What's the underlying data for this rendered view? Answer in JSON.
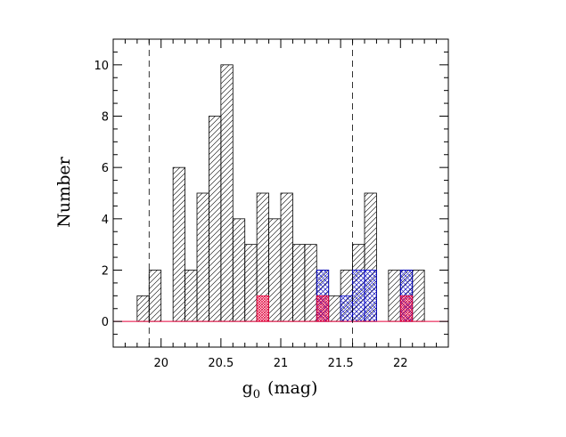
{
  "chart_data": {
    "type": "bar",
    "title": "",
    "xlabel_main": "g",
    "xlabel_sub": "0",
    "xlabel_unit": "(mag)",
    "ylabel": "Number",
    "xlim": [
      19.6,
      22.4
    ],
    "ylim": [
      -1,
      11
    ],
    "bin_width": 0.1,
    "x_ticks": [
      20,
      20.5,
      21,
      21.5,
      22
    ],
    "x_tick_labels": [
      "20",
      "20.5",
      "21",
      "21.5",
      "22"
    ],
    "y_ticks": [
      0,
      2,
      4,
      6,
      8,
      10
    ],
    "y_tick_labels": [
      "0",
      "2",
      "4",
      "6",
      "8",
      "10"
    ],
    "vertical_dashed_lines": [
      19.9,
      21.6
    ],
    "grid": false,
    "series": [
      {
        "color": "#000000",
        "hatch": "diagonal",
        "bins": [
          {
            "x0": 19.8,
            "count": 1
          },
          {
            "x0": 19.9,
            "count": 2
          },
          {
            "x0": 20.1,
            "count": 6
          },
          {
            "x0": 20.2,
            "count": 2
          },
          {
            "x0": 20.3,
            "count": 5
          },
          {
            "x0": 20.4,
            "count": 8
          },
          {
            "x0": 20.5,
            "count": 10
          },
          {
            "x0": 20.6,
            "count": 4
          },
          {
            "x0": 20.7,
            "count": 3
          },
          {
            "x0": 20.8,
            "count": 5
          },
          {
            "x0": 20.9,
            "count": 4
          },
          {
            "x0": 21.0,
            "count": 5
          },
          {
            "x0": 21.1,
            "count": 3
          },
          {
            "x0": 21.2,
            "count": 3
          },
          {
            "x0": 21.3,
            "count": 2
          },
          {
            "x0": 21.4,
            "count": 1
          },
          {
            "x0": 21.5,
            "count": 2
          },
          {
            "x0": 21.6,
            "count": 3
          },
          {
            "x0": 21.7,
            "count": 5
          },
          {
            "x0": 21.9,
            "count": 2
          },
          {
            "x0": 22.0,
            "count": 2
          },
          {
            "x0": 22.1,
            "count": 2
          }
        ]
      },
      {
        "color": "#0000cc",
        "hatch": "crosshatch",
        "bins": [
          {
            "x0": 21.3,
            "count": 2
          },
          {
            "x0": 21.5,
            "count": 1
          },
          {
            "x0": 21.6,
            "count": 2
          },
          {
            "x0": 21.7,
            "count": 2
          },
          {
            "x0": 22.0,
            "count": 2
          }
        ]
      },
      {
        "color": "#e8003a",
        "hatch": "crosshatch",
        "bins": [
          {
            "x0": 20.8,
            "count": 1
          },
          {
            "x0": 21.3,
            "count": 1
          },
          {
            "x0": 22.0,
            "count": 1
          }
        ]
      }
    ]
  }
}
